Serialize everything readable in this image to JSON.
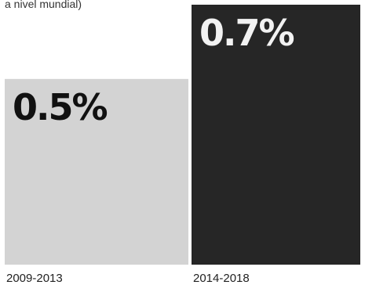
{
  "subtitle": "a nivel mundial)",
  "colors": {
    "bar_1": "#d3d3d3",
    "bar_2": "#262626",
    "label_on_light": "#111111",
    "label_on_dark": "#f2f2f2"
  },
  "chart_data": {
    "type": "bar",
    "categories": [
      "2009-2013",
      "2014-2018"
    ],
    "values": [
      0.5,
      0.7
    ],
    "value_labels": [
      "0.5%",
      "0.7%"
    ],
    "unit": "%",
    "title": "",
    "xlabel": "",
    "ylabel": "",
    "ylim": [
      0,
      0.7
    ],
    "grid": false,
    "legend": "none"
  }
}
